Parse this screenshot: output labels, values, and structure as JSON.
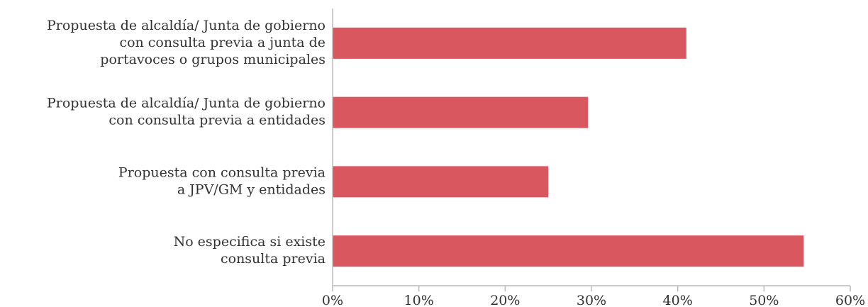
{
  "chart_data": {
    "type": "bar",
    "orientation": "horizontal",
    "categories": [
      [
        "Propuesta de alcaldía/ Junta de gobierno",
        "con consulta previa a junta de",
        "portavoces o grupos municipales"
      ],
      [
        "Propuesta de alcaldía/ Junta de gobierno",
        "con consulta previa a entidades"
      ],
      [
        "Propuesta con consulta previa",
        "a JPV/GM y entidades"
      ],
      [
        "No especifica si existe",
        "consulta previa"
      ]
    ],
    "values": [
      41,
      29.6,
      25,
      54.6
    ],
    "color": "#d9575f",
    "xlim": [
      0,
      60
    ],
    "xticks": [
      {
        "value": 0,
        "label": "0%"
      },
      {
        "value": 10,
        "label": "10%"
      },
      {
        "value": 20,
        "label": "20%"
      },
      {
        "value": 30,
        "label": "30%"
      },
      {
        "value": 40,
        "label": "40%"
      },
      {
        "value": 50,
        "label": "50%"
      },
      {
        "value": 60,
        "label": "60%"
      }
    ],
    "grid": false
  }
}
